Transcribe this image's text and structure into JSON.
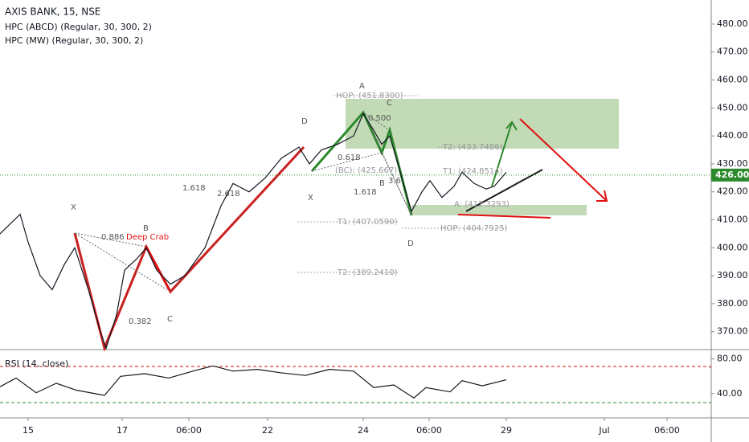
{
  "header": {
    "title": "AXIS BANK, 15, NSE",
    "indicators": [
      "HPC (ABCD) (Regular, 30, 300, 2)",
      "HPC (MW) (Regular, 30, 300, 2)"
    ]
  },
  "chart_data": [
    {
      "type": "line",
      "color": "#131722",
      "x": [
        0,
        2.5,
        3.5,
        5,
        6.5,
        8,
        9.3,
        11,
        12.5,
        13.2,
        14.5,
        15.5,
        17,
        18.2,
        19.5,
        21.2,
        23,
        25.5,
        27.5,
        29,
        31,
        33,
        35,
        37.2,
        38.5,
        40,
        42,
        44,
        45.2,
        46.5,
        47.5,
        48.5,
        49.5,
        51.2,
        52.5,
        53.5,
        55,
        56.5,
        57.5,
        59,
        60.5,
        61.5,
        63
      ],
      "values": [
        405,
        412,
        402,
        390,
        385,
        394,
        400,
        385,
        370,
        364,
        376,
        392,
        396,
        400,
        392,
        387,
        390,
        400,
        415,
        423,
        420,
        425,
        432,
        436,
        430,
        435,
        437,
        440,
        448,
        442,
        437,
        440,
        430,
        413,
        420,
        424,
        418,
        422,
        427,
        423,
        421,
        422,
        427
      ],
      "xlim": [
        0,
        88.5
      ],
      "ylim": [
        363.6,
        488.6
      ],
      "yticks": [
        {
          "value": 370,
          "label": "370.00"
        },
        {
          "value": 380,
          "label": "380.00"
        },
        {
          "value": 390,
          "label": "390.00"
        },
        {
          "value": 400,
          "label": "400.00"
        },
        {
          "value": 410,
          "label": "410.00"
        },
        {
          "value": 420,
          "label": "420.00"
        },
        {
          "value": 430,
          "label": "430.00"
        },
        {
          "value": 440,
          "label": "440.00"
        },
        {
          "value": 450,
          "label": "450.00"
        },
        {
          "value": 460,
          "label": "460.00"
        },
        {
          "value": 470,
          "label": "470.00"
        },
        {
          "value": 480,
          "label": "480.00"
        }
      ],
      "xticks": [
        {
          "value": 3.5,
          "label": "15"
        },
        {
          "value": 15.2,
          "label": "17"
        },
        {
          "value": 23.5,
          "label": "06:00"
        },
        {
          "value": 33.3,
          "label": "22"
        },
        {
          "value": 45.2,
          "label": "24"
        },
        {
          "value": 53.4,
          "label": "06:00"
        },
        {
          "value": 63,
          "label": "29"
        },
        {
          "value": 75.2,
          "label": "Jul"
        },
        {
          "value": 83,
          "label": "06:00"
        }
      ],
      "current_price": {
        "value": 426,
        "label": "426.00"
      },
      "annotations": [
        "X",
        "B",
        "C",
        "D",
        "Deep Crab",
        "0.886",
        "1.618",
        "0.382",
        "2.618",
        "A",
        "C",
        "D",
        "X",
        "B",
        "0.500",
        "0.618",
        "1.618",
        "3.6",
        "HOP: (451.8300)",
        "T2: (433.7486)",
        "(BC): (425.667)",
        "T1: (424.8514)",
        "T1: (407.0590)",
        "HOP: (404.7925)",
        "T2: (389.2410)",
        "A: (412.3293)"
      ]
    },
    {
      "type": "line",
      "title": "RSI (14, close)",
      "color": "#131722",
      "x": [
        0,
        2,
        4.5,
        7,
        9.5,
        13,
        15,
        18,
        21,
        24,
        26.5,
        29,
        32,
        35,
        38,
        41,
        44,
        46.5,
        49,
        51.5,
        53,
        56,
        57.5,
        60,
        63
      ],
      "values": [
        48,
        58,
        41,
        52,
        44,
        38,
        60,
        63,
        58,
        66,
        72,
        66,
        68,
        64,
        61,
        68,
        66,
        47,
        50,
        35,
        47,
        42,
        55,
        49,
        56
      ],
      "xlim": [
        0,
        88.5
      ],
      "ylim": [
        12,
        89
      ],
      "yticks": [
        {
          "value": 40,
          "label": "40.00"
        },
        {
          "value": 80,
          "label": "80.00"
        }
      ],
      "bands": [
        70,
        30
      ]
    }
  ]
}
